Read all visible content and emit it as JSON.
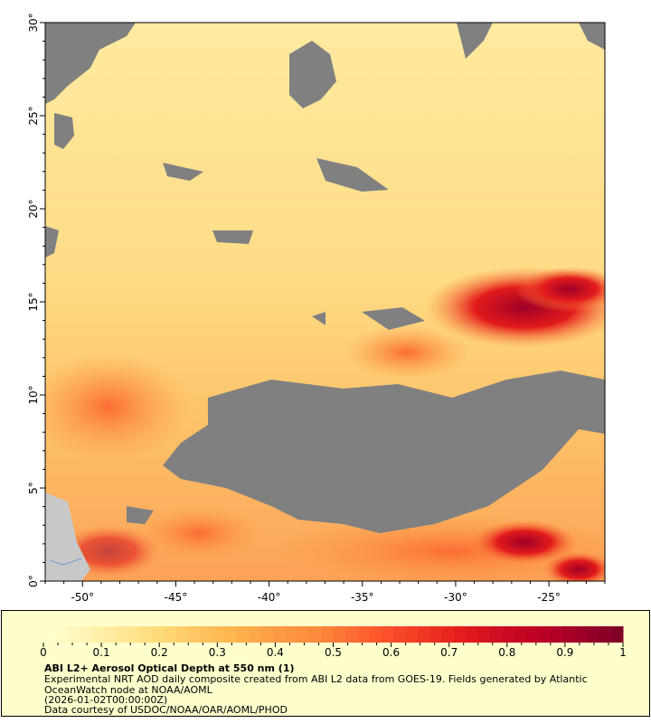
{
  "map": {
    "lon_range": [
      -52,
      -22
    ],
    "lat_range": [
      0,
      30
    ],
    "lon_ticks": [
      "-50°",
      "-45°",
      "-40°",
      "-35°",
      "-30°",
      "-25°"
    ],
    "lon_tick_values": [
      -50,
      -45,
      -40,
      -35,
      -30,
      -25
    ],
    "lat_ticks": [
      "0°",
      "5°",
      "10°",
      "15°",
      "20°",
      "25°",
      "30°"
    ],
    "lat_tick_values": [
      0,
      5,
      10,
      15,
      20,
      25,
      30
    ],
    "colors": {
      "missing": "#808080",
      "land": "#c8c8c8",
      "low": "#ffffcc",
      "high": "#800026"
    }
  },
  "legend": {
    "colorbar_ticks": [
      "0",
      "0.1",
      "0.2",
      "0.3",
      "0.4",
      "0.5",
      "0.6",
      "0.7",
      "0.8",
      "0.9",
      "1"
    ],
    "colorbar_range": [
      0,
      1
    ],
    "colormap": [
      "#ffffcc",
      "#fff3b2",
      "#ffe793",
      "#fed976",
      "#fec35f",
      "#feb24c",
      "#fd9a44",
      "#fd8d3c",
      "#fc6c33",
      "#fc4e2a",
      "#ee3422",
      "#e31a1c",
      "#cc0c22",
      "#bd0026",
      "#9f0027",
      "#800026"
    ],
    "title": "ABI L2+ Aerosol Optical Depth at 550 nm (1)",
    "description": "Experimental NRT AOD daily composite created from ABI L2 data from GOES-19. Fields generated by Atlantic OceanWatch node at NOAA/AOML",
    "date": "(2026-01-02T00:00:00Z)",
    "credit": "Data courtesy of USDOC/NOAA/OAR/AOML/PHOD"
  }
}
